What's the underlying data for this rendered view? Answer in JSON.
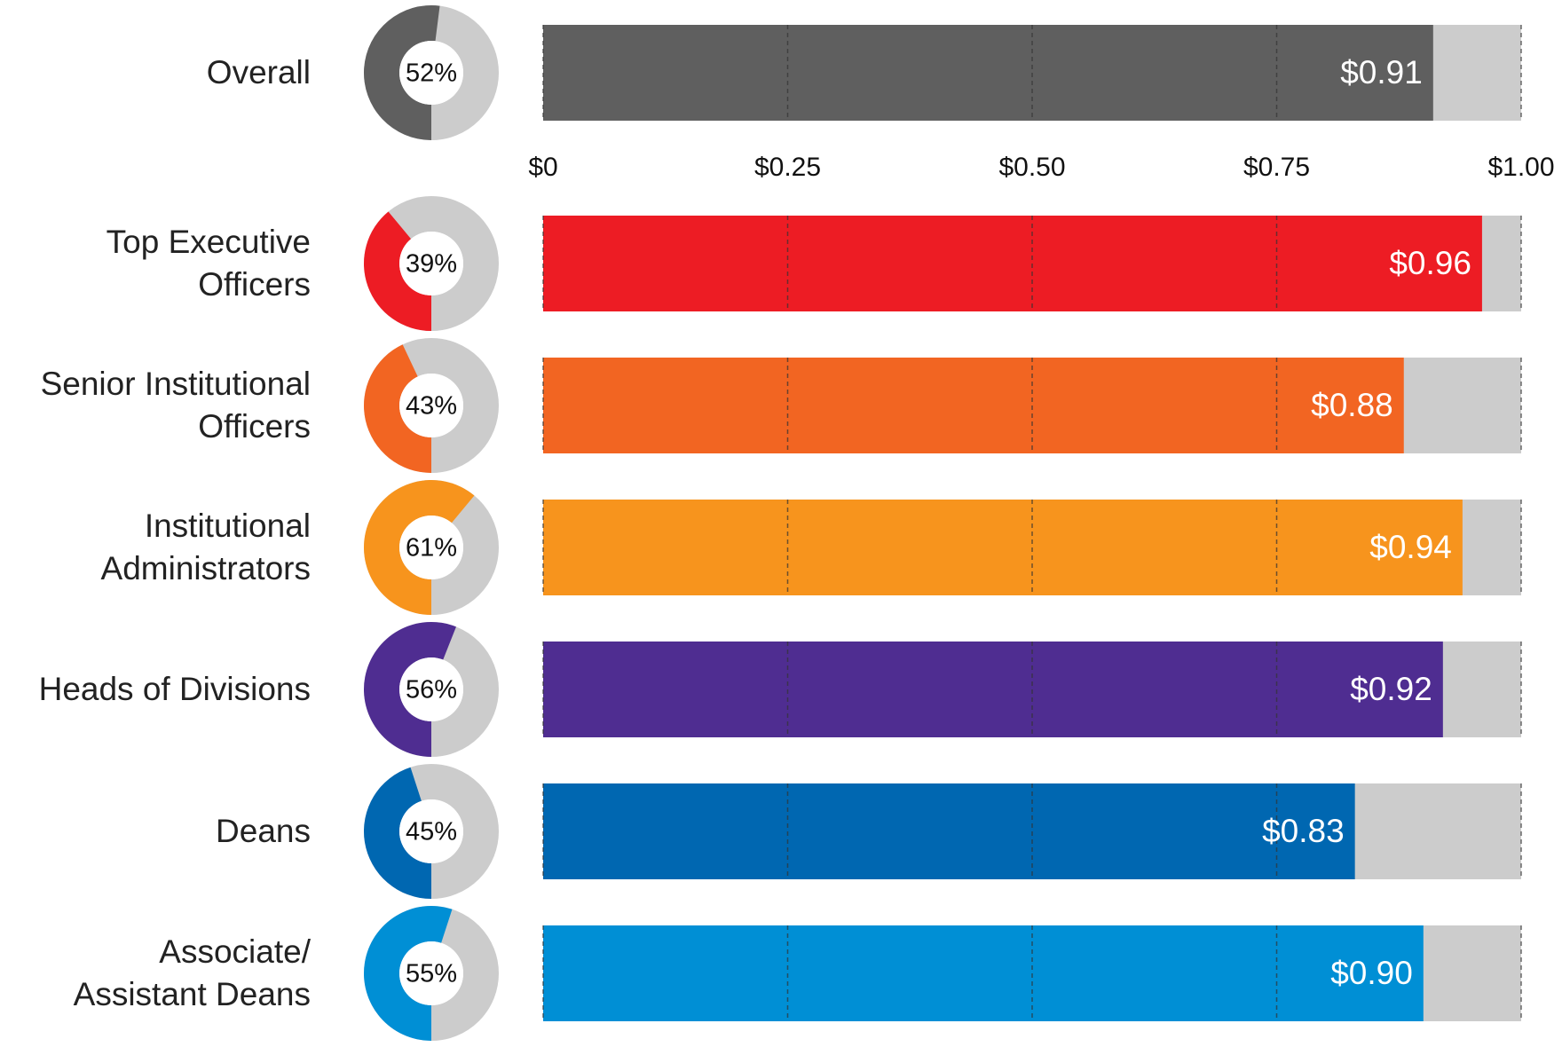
{
  "chart_data": {
    "type": "bar",
    "orientation": "horizontal",
    "categories": [
      "Overall",
      "Top Executive\nOfficers",
      "Senior Institutional\nOfficers",
      "Institutional\nAdministrators",
      "Heads of Divisions",
      "Deans",
      "Associate/\nAssistant Deans"
    ],
    "values": [
      0.91,
      0.96,
      0.88,
      0.94,
      0.92,
      0.83,
      0.9
    ],
    "value_labels": [
      "$0.91",
      "$0.96",
      "$0.88",
      "$0.94",
      "$0.92",
      "$0.83",
      "$0.90"
    ],
    "shares": [
      52,
      39,
      43,
      61,
      56,
      45,
      55
    ],
    "share_labels": [
      "52%",
      "39%",
      "43%",
      "61%",
      "56%",
      "45%",
      "55%"
    ],
    "colors": [
      "#5f5f5f",
      "#ed1c24",
      "#f26522",
      "#f7941d",
      "#4f2d91",
      "#0067b1",
      "#008fd5"
    ],
    "background_color": "#cccccc",
    "xlim": [
      0,
      1
    ],
    "xticks": [
      {
        "value": 0,
        "label": "$0"
      },
      {
        "value": 0.25,
        "label": "$0.25"
      },
      {
        "value": 0.5,
        "label": "$0.50"
      },
      {
        "value": 0.75,
        "label": "$0.75"
      },
      {
        "value": 1,
        "label": "$1.00"
      }
    ],
    "grid": true
  }
}
